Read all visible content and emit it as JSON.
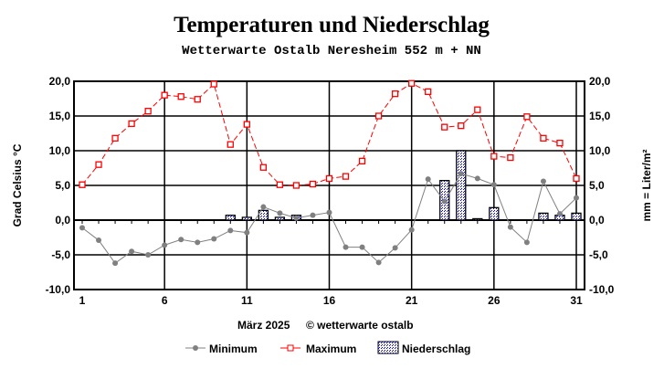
{
  "chart_data": {
    "type": "line",
    "title": "Temperaturen und  Niederschlag",
    "subtitle": "Wetterwarte Ostalb Neresheim 552 m + NN",
    "xlabel": "März 2025",
    "credit": "© wetterwarte ostalb",
    "ylabel_left": "Grad Celsius °C",
    "ylabel_right": "mm = Liter/m²",
    "ylim": [
      -10,
      20
    ],
    "yticks": [
      "20,0",
      "15,0",
      "10,0",
      "5,0",
      "0,0",
      "-5,0",
      "-10,0"
    ],
    "xticks": [
      "1",
      "6",
      "11",
      "16",
      "21",
      "26",
      "31"
    ],
    "x": [
      1,
      2,
      3,
      4,
      5,
      6,
      7,
      8,
      9,
      10,
      11,
      12,
      13,
      14,
      15,
      16,
      17,
      18,
      19,
      20,
      21,
      22,
      23,
      24,
      25,
      26,
      27,
      28,
      29,
      30,
      31
    ],
    "series": [
      {
        "name": "Minimum",
        "type": "line",
        "color": "#808080",
        "values": [
          -1.1,
          -2.9,
          -6.2,
          -4.5,
          -5.0,
          -3.6,
          -2.8,
          -3.2,
          -2.7,
          -1.5,
          -1.8,
          1.9,
          1.0,
          0.3,
          0.7,
          1.1,
          -3.9,
          -3.9,
          -6.1,
          -4.0,
          -1.4,
          5.9,
          2.7,
          6.7,
          6.0,
          5.1,
          -1.0,
          -3.2,
          5.6,
          0.9,
          3.2
        ]
      },
      {
        "name": "Maximum",
        "type": "line",
        "color": "#ff0000",
        "values": [
          5.1,
          8.0,
          11.8,
          13.9,
          15.7,
          18.0,
          17.8,
          17.4,
          19.6,
          10.9,
          13.8,
          7.6,
          5.1,
          5.0,
          5.2,
          6.0,
          6.3,
          8.5,
          15.0,
          18.2,
          19.7,
          18.5,
          13.4,
          13.6,
          15.9,
          9.2,
          9.0,
          14.9,
          11.8,
          11.1,
          6.0
        ]
      },
      {
        "name": "Niederschlag",
        "type": "bar",
        "color": "#0000ff",
        "values": [
          0,
          0,
          0,
          0,
          0,
          0,
          0,
          0,
          0,
          0.7,
          0.4,
          1.4,
          0.4,
          0.7,
          0,
          0,
          0,
          0,
          0,
          0,
          0,
          0,
          5.7,
          10.0,
          0.2,
          1.8,
          0,
          0,
          1.0,
          0.7,
          1.0
        ]
      }
    ],
    "legend": "bottom"
  }
}
